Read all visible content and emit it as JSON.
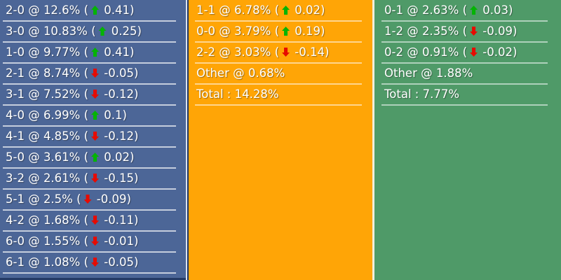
{
  "colors": {
    "home_bg": "#4c6697",
    "draw_bg": "#ffa506",
    "away_bg": "#4f9a68",
    "home_border": "#dce3f0",
    "draw_border_left": "#1d3766",
    "draw_border_right": "#f3eedb",
    "up_arrow": "#04b404",
    "down_arrow": "#e60b00",
    "text": "#ffffff"
  },
  "panels": [
    {
      "id": "home",
      "rows": [
        {
          "score": "2-0",
          "sep": "@",
          "pct": "12.6%",
          "dir": "up",
          "delta": "0.41"
        },
        {
          "score": "3-0",
          "sep": "@",
          "pct": "10.83%",
          "dir": "up",
          "delta": "0.25"
        },
        {
          "score": "1-0",
          "sep": "@",
          "pct": "9.77%",
          "dir": "up",
          "delta": "0.41"
        },
        {
          "score": "2-1",
          "sep": "@",
          "pct": "8.74%",
          "dir": "down",
          "delta": "-0.05"
        },
        {
          "score": "3-1",
          "sep": "@",
          "pct": "7.52%",
          "dir": "down",
          "delta": "-0.12"
        },
        {
          "score": "4-0",
          "sep": "@",
          "pct": "6.99%",
          "dir": "up",
          "delta": "0.1"
        },
        {
          "score": "4-1",
          "sep": "@",
          "pct": "4.85%",
          "dir": "down",
          "delta": "-0.12"
        },
        {
          "score": "5-0",
          "sep": "@",
          "pct": "3.61%",
          "dir": "up",
          "delta": "0.02"
        },
        {
          "score": "3-2",
          "sep": "@",
          "pct": "2.61%",
          "dir": "down",
          "delta": "-0.15"
        },
        {
          "score": "5-1",
          "sep": "@",
          "pct": "2.5%",
          "dir": "down",
          "delta": "-0.09"
        },
        {
          "score": "4-2",
          "sep": "@",
          "pct": "1.68%",
          "dir": "down",
          "delta": "-0.11"
        },
        {
          "score": "6-0",
          "sep": "@",
          "pct": "1.55%",
          "dir": "down",
          "delta": "-0.01"
        },
        {
          "score": "6-1",
          "sep": "@",
          "pct": "1.08%",
          "dir": "down",
          "delta": "-0.05"
        }
      ]
    },
    {
      "id": "draw",
      "rows": [
        {
          "score": "1-1",
          "sep": "@",
          "pct": "6.78%",
          "dir": "up",
          "delta": "0.02"
        },
        {
          "score": "0-0",
          "sep": "@",
          "pct": "3.79%",
          "dir": "up",
          "delta": "0.19"
        },
        {
          "score": "2-2",
          "sep": "@",
          "pct": "3.03%",
          "dir": "down",
          "delta": "-0.14"
        },
        {
          "score": "Other",
          "sep": "@",
          "pct": "0.68%"
        },
        {
          "score": "Total",
          "sep": ":",
          "pct": "14.28%"
        }
      ]
    },
    {
      "id": "away",
      "rows": [
        {
          "score": "0-1",
          "sep": "@",
          "pct": "2.63%",
          "dir": "up",
          "delta": "0.03"
        },
        {
          "score": "1-2",
          "sep": "@",
          "pct": "2.35%",
          "dir": "down",
          "delta": "-0.09"
        },
        {
          "score": "0-2",
          "sep": "@",
          "pct": "0.91%",
          "dir": "down",
          "delta": "-0.02"
        },
        {
          "score": "Other",
          "sep": "@",
          "pct": "1.88%"
        },
        {
          "score": "Total",
          "sep": ":",
          "pct": "7.77%"
        }
      ]
    }
  ]
}
